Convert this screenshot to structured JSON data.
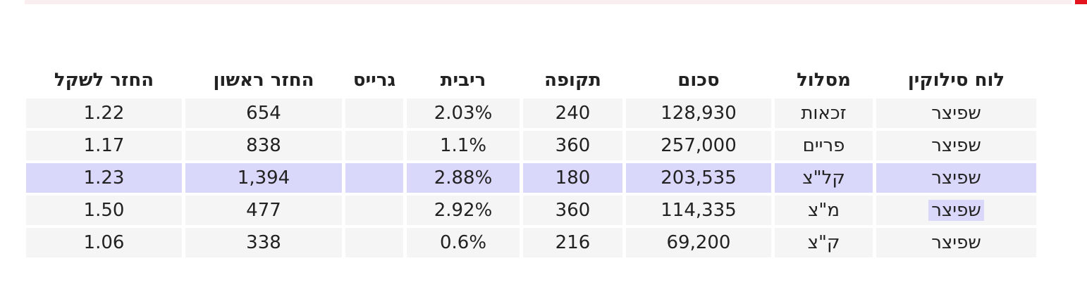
{
  "table": {
    "columns": [
      "לוח סילוקין",
      "מסלול",
      "סכום",
      "תקופה",
      "ריבית",
      "גרייס",
      "החזר ראשון",
      "החזר לשקל"
    ],
    "rows": [
      [
        "שפיצר",
        "זכאות",
        "128,930",
        "240",
        "2.03%",
        null,
        "654",
        "1.22"
      ],
      [
        "שפיצר",
        "פריים",
        "257,000",
        "360",
        "1.1%",
        null,
        "838",
        "1.17"
      ],
      [
        "שפיצר",
        "קל\"צ",
        "203,535",
        "180",
        "2.88%",
        null,
        "1,394",
        "1.23"
      ],
      [
        "שפיצר",
        "מ\"צ",
        "114,335",
        "360",
        "2.92%",
        null,
        "477",
        "1.50"
      ],
      [
        "שפיצר",
        "ק\"צ",
        "69,200",
        "216",
        "0.6%",
        null,
        "338",
        "1.06"
      ]
    ]
  }
}
